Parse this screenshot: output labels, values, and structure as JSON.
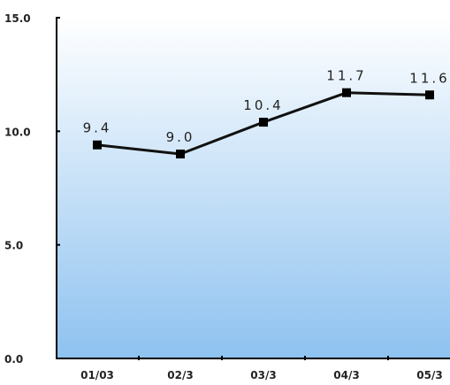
{
  "chart_data": {
    "type": "line",
    "categories": [
      "01/03",
      "02/3",
      "03/3",
      "04/3",
      "05/3"
    ],
    "series": [
      {
        "values": [
          9.4,
          9.0,
          10.4,
          11.7,
          11.6
        ]
      }
    ],
    "data_labels": [
      "9.4",
      "9.0",
      "10.4",
      "11.7",
      "11.6"
    ],
    "yticks": [
      "0.0",
      "5.0",
      "10.0",
      "15.0"
    ],
    "ylim": [
      0,
      15
    ],
    "title": "",
    "xlabel": "",
    "ylabel": "",
    "grid": false,
    "legend": "none",
    "colors": {
      "line": "#111111",
      "marker": "#000000",
      "bg_top": "#ffffff",
      "bg_bottom": "#8ec2f0",
      "axis": "#000000"
    }
  }
}
